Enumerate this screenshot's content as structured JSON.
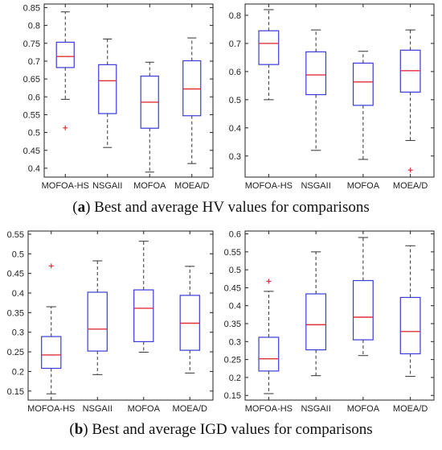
{
  "captions": {
    "a_tag": "a",
    "a_text": " Best and average HV values for comparisons",
    "b_tag": "b",
    "b_text": " Best and average IGD values for comparisons"
  },
  "colors": {
    "box": "#3b3bd6",
    "median": "#e0303a",
    "whisker": "#333333",
    "outlier": "#e0303a",
    "axis": "#222222"
  },
  "chart_data": [
    {
      "type": "box",
      "title": "",
      "xlabel": "",
      "ylabel": "",
      "categories": [
        "MOFOA-HS",
        "NSGAII",
        "MOFOA",
        "MOEA/D"
      ],
      "ylim": [
        0.375,
        0.86
      ],
      "yticks": [
        "0.4",
        "0.45",
        "0.5",
        "0.55",
        "0.6",
        "0.65",
        "0.7",
        "0.75",
        "0.8",
        "0.85"
      ],
      "boxes": [
        {
          "min": 0.593,
          "q1": 0.682,
          "median": 0.713,
          "q3": 0.753,
          "max": 0.838,
          "outliers": [
            0.513
          ]
        },
        {
          "min": 0.458,
          "q1": 0.553,
          "median": 0.645,
          "q3": 0.69,
          "max": 0.762,
          "outliers": []
        },
        {
          "min": 0.389,
          "q1": 0.512,
          "median": 0.585,
          "q3": 0.658,
          "max": 0.697,
          "outliers": []
        },
        {
          "min": 0.413,
          "q1": 0.547,
          "median": 0.622,
          "q3": 0.701,
          "max": 0.765,
          "outliers": []
        }
      ]
    },
    {
      "type": "box",
      "title": "",
      "xlabel": "",
      "ylabel": "",
      "categories": [
        "MOFOA-HS",
        "NSGAII",
        "MOFOA",
        "MOEA/D"
      ],
      "ylim": [
        0.225,
        0.84
      ],
      "yticks": [
        "0.3",
        "0.4",
        "0.5",
        "0.6",
        "0.7",
        "0.8"
      ],
      "boxes": [
        {
          "min": 0.5,
          "q1": 0.625,
          "median": 0.7,
          "q3": 0.745,
          "max": 0.82,
          "outliers": []
        },
        {
          "min": 0.32,
          "q1": 0.518,
          "median": 0.588,
          "q3": 0.67,
          "max": 0.748,
          "outliers": []
        },
        {
          "min": 0.288,
          "q1": 0.48,
          "median": 0.563,
          "q3": 0.63,
          "max": 0.672,
          "outliers": []
        },
        {
          "min": 0.355,
          "q1": 0.527,
          "median": 0.603,
          "q3": 0.676,
          "max": 0.748,
          "outliers": [
            0.25
          ]
        }
      ]
    },
    {
      "type": "box",
      "title": "",
      "xlabel": "",
      "ylabel": "",
      "categories": [
        "MOFOA-HS",
        "NSGAII",
        "MOFOA",
        "MOEA/D"
      ],
      "ylim": [
        0.127,
        0.558
      ],
      "yticks": [
        "0.15",
        "0.2",
        "0.25",
        "0.3",
        "0.35",
        "0.4",
        "0.45",
        "0.5",
        "0.55"
      ],
      "boxes": [
        {
          "min": 0.143,
          "q1": 0.208,
          "median": 0.242,
          "q3": 0.289,
          "max": 0.365,
          "outliers": [
            0.469
          ]
        },
        {
          "min": 0.192,
          "q1": 0.252,
          "median": 0.308,
          "q3": 0.402,
          "max": 0.482,
          "outliers": []
        },
        {
          "min": 0.249,
          "q1": 0.276,
          "median": 0.361,
          "q3": 0.408,
          "max": 0.532,
          "outliers": []
        },
        {
          "min": 0.196,
          "q1": 0.254,
          "median": 0.323,
          "q3": 0.394,
          "max": 0.468,
          "outliers": []
        }
      ]
    },
    {
      "type": "box",
      "title": "",
      "xlabel": "",
      "ylabel": "",
      "categories": [
        "MOFOA-HS",
        "NSGAII",
        "MOFOA",
        "MOEA/D"
      ],
      "ylim": [
        0.137,
        0.608
      ],
      "yticks": [
        "0.15",
        "0.2",
        "0.25",
        "0.3",
        "0.35",
        "0.4",
        "0.45",
        "0.5",
        "0.55",
        "0.6"
      ],
      "boxes": [
        {
          "min": 0.155,
          "q1": 0.218,
          "median": 0.252,
          "q3": 0.312,
          "max": 0.44,
          "outliers": [
            0.468
          ]
        },
        {
          "min": 0.205,
          "q1": 0.277,
          "median": 0.347,
          "q3": 0.433,
          "max": 0.55,
          "outliers": []
        },
        {
          "min": 0.261,
          "q1": 0.305,
          "median": 0.368,
          "q3": 0.47,
          "max": 0.59,
          "outliers": []
        },
        {
          "min": 0.203,
          "q1": 0.266,
          "median": 0.328,
          "q3": 0.423,
          "max": 0.567,
          "outliers": []
        }
      ]
    }
  ]
}
